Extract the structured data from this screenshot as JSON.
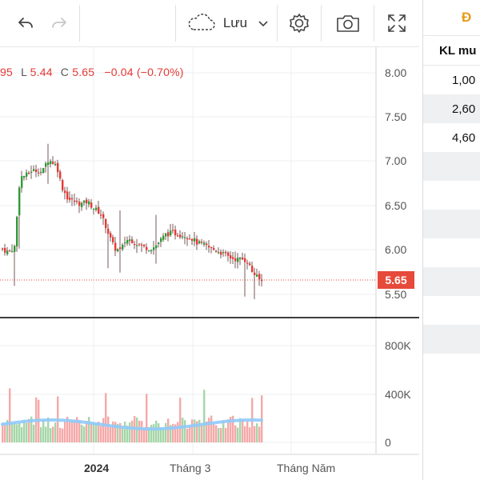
{
  "toolbar": {
    "save_label": "Lưu",
    "icons": [
      "undo-icon",
      "redo-icon",
      "cloud-icon",
      "chevron-down-icon",
      "gear-icon",
      "camera-icon",
      "fullscreen-icon"
    ]
  },
  "legend": {
    "open_fragment": "95",
    "low_key": "L",
    "low_value": "5.44",
    "close_key": "C",
    "close_value": "5.65",
    "change": "−0.04 (−0.70%)"
  },
  "price_axis": {
    "ticks": [
      "8.00",
      "7.50",
      "7.00",
      "6.50",
      "6.00",
      "5.50"
    ],
    "current_price": "5.65"
  },
  "volume_axis": {
    "ticks": [
      "800K",
      "400K",
      "0"
    ]
  },
  "time_axis": {
    "labels": [
      "2024",
      "Tháng 3",
      "Tháng Năm"
    ]
  },
  "side_panel": {
    "tab_label": "Đ",
    "header": "KL mu",
    "rows": [
      "1,00",
      "2,60",
      "4,60",
      "",
      "",
      "",
      "",
      "",
      "",
      ""
    ]
  },
  "colors": {
    "up": "#2e9a37",
    "down": "#e53935",
    "price_line": "#e64a3b",
    "volume_ma": "#90caf9"
  },
  "chart_data": {
    "type": "candlestick",
    "close_price": 5.65,
    "price_ylim": [
      5.35,
      8.15
    ],
    "volume_ylim": [
      0,
      900000
    ],
    "x_labels": [
      "2024",
      "Tháng 3",
      "Tháng Năm"
    ]
  }
}
